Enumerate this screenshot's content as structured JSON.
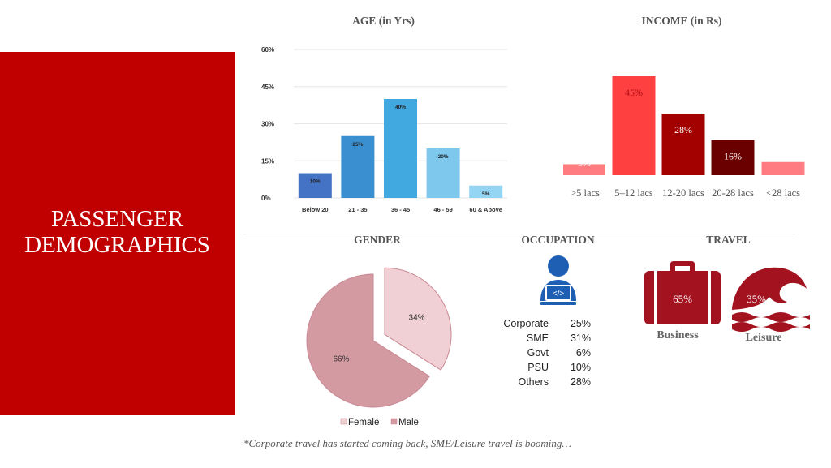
{
  "side_title_line1": "PASSENGER",
  "side_title_line2": "DEMOGRAPHICS",
  "age_title": "AGE (in Yrs)",
  "income_title": "INCOME (in Rs)",
  "gender_title": "GENDER",
  "occupation_title": "OCCUPATION",
  "travel_title": "TRAVEL",
  "occupation": {
    "rows": [
      {
        "name": "Corporate",
        "value": "25%"
      },
      {
        "name": "SME",
        "value": "31%"
      },
      {
        "name": "Govt",
        "value": "6%"
      },
      {
        "name": "PSU",
        "value": "10%"
      },
      {
        "name": "Others",
        "value": "28%"
      }
    ]
  },
  "travel": {
    "business_label": "Business",
    "business_value": "65%",
    "leisure_label": "Leisure",
    "leisure_value": "35%"
  },
  "footnote": "*Corporate travel  has started coming back, SME/Leisure travel is booming…",
  "icons": [
    "developer-laptop-icon",
    "briefcase-icon",
    "wave-icon"
  ],
  "colors": {
    "accent": "#c00000"
  },
  "chart_data": [
    {
      "type": "bar",
      "title": "AGE (in Yrs)",
      "categories": [
        "Below 20",
        "21 - 35",
        "36 - 45",
        "46 - 59",
        "60 & Above"
      ],
      "values": [
        10,
        25,
        40,
        20,
        5
      ],
      "data_labels": [
        "10%",
        "25%",
        "40%",
        "20%",
        "5%"
      ],
      "yticks": [
        "0%",
        "15%",
        "30%",
        "45%",
        "60%"
      ],
      "ylim": [
        0,
        60
      ],
      "grid": true,
      "colors": [
        "#4472c4",
        "#3a8fd0",
        "#41a9df",
        "#7ec8ee",
        "#93d5f3"
      ]
    },
    {
      "type": "bar",
      "title": "INCOME (in Rs)",
      "categories": [
        ">5 lacs",
        "5–12 lacs",
        "12-20 lacs",
        "20-28 lacs",
        "<28 lacs"
      ],
      "values": [
        5,
        45,
        28,
        16,
        6
      ],
      "data_labels": [
        "5%",
        "45%",
        "28%",
        "16%",
        "6%"
      ],
      "colors": [
        "#ff7c80",
        "#ff4040",
        "#a30000",
        "#6b0000",
        "#ff7c80"
      ]
    },
    {
      "type": "pie",
      "title": "GENDER",
      "labels": [
        "Female",
        "Male"
      ],
      "values": [
        34,
        66
      ],
      "data_labels": [
        "34%",
        "66%"
      ],
      "legend": "bottom",
      "colors": [
        "#f0d0d4",
        "#d49aa2"
      ]
    }
  ]
}
